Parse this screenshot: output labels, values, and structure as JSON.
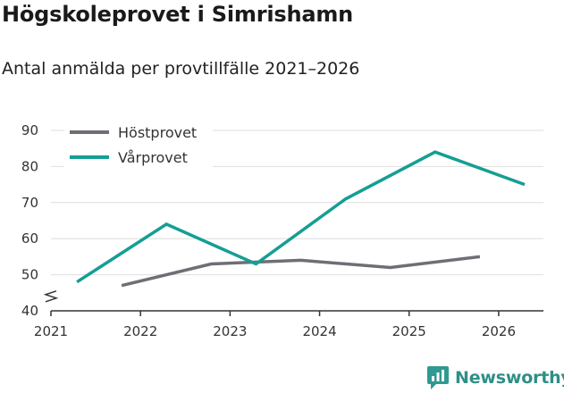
{
  "header": {
    "title": "Högskoleprovet i Simrishamn",
    "subtitle": "Antal anmälda per provtillfälle 2021–2026"
  },
  "brand": {
    "name": "Newsworthy",
    "color": "#2f9a91"
  },
  "chart_data": {
    "type": "line",
    "title": "Högskoleprovet i Simrishamn",
    "subtitle": "Antal anmälda per provtillfälle 2021–2026",
    "xlabel": "",
    "ylabel": "",
    "ylim": [
      40,
      90
    ],
    "xlim": [
      2021,
      2026.5
    ],
    "y_ticks": [
      40,
      50,
      60,
      70,
      80,
      90
    ],
    "x_ticks": [
      2021,
      2022,
      2023,
      2024,
      2025,
      2026
    ],
    "y_axis_break": true,
    "grid": true,
    "legend_position": "top-left",
    "series": [
      {
        "name": "Höstprovet",
        "color": "#6f6e74",
        "points": [
          [
            2021.79,
            47
          ],
          [
            2022.79,
            53
          ],
          [
            2023.79,
            54
          ],
          [
            2024.79,
            52
          ],
          [
            2025.79,
            55
          ]
        ]
      },
      {
        "name": "Vårprovet",
        "color": "#159e94",
        "points": [
          [
            2021.29,
            48
          ],
          [
            2022.29,
            64
          ],
          [
            2023.29,
            53
          ],
          [
            2024.29,
            71
          ],
          [
            2025.29,
            84
          ],
          [
            2026.29,
            75
          ]
        ]
      }
    ]
  }
}
